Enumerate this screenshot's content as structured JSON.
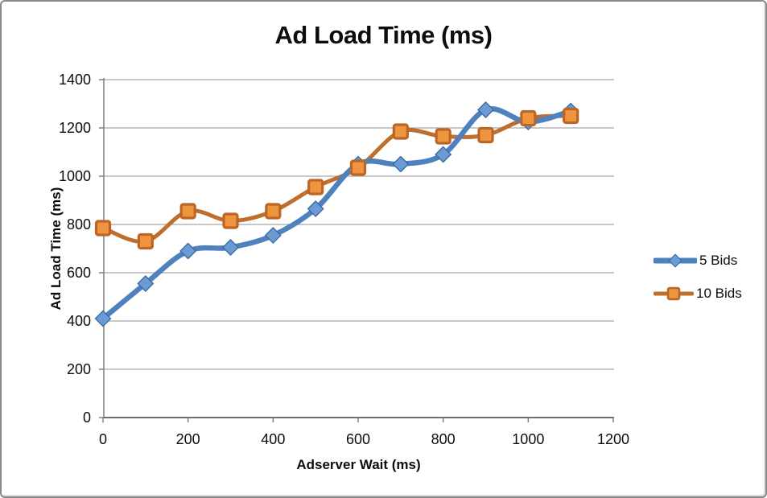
{
  "window": {
    "background": "#ffffff",
    "border_color": "#888888"
  },
  "chart_data": {
    "type": "line",
    "title": "Ad Load Time (ms)",
    "xlabel": "Adserver Wait (ms)",
    "ylabel": "Ad Load Time (ms)",
    "x": [
      0,
      100,
      200,
      300,
      400,
      500,
      600,
      700,
      800,
      900,
      1000,
      1100
    ],
    "series": [
      {
        "name": "5 Bids",
        "marker": "diamond",
        "line_color": "#4E81BD",
        "marker_fill": "#6C9BD3",
        "marker_stroke": "#3C6CA6",
        "line_width": 6.5,
        "values": [
          410,
          555,
          690,
          705,
          755,
          865,
          1050,
          1050,
          1090,
          1275,
          1225,
          1270
        ]
      },
      {
        "name": "10 Bids",
        "marker": "square",
        "line_color": "#BE6F2E",
        "marker_fill": "#F0953F",
        "marker_stroke": "#BB6527",
        "line_width": 5,
        "values": [
          785,
          730,
          855,
          815,
          855,
          955,
          1035,
          1185,
          1165,
          1170,
          1240,
          1250
        ]
      }
    ],
    "xlim": [
      0,
      1200
    ],
    "ylim": [
      0,
      1400
    ],
    "x_ticks": [
      0,
      200,
      400,
      600,
      800,
      1000,
      1200
    ],
    "y_ticks": [
      0,
      200,
      400,
      600,
      800,
      1000,
      1200,
      1400
    ],
    "grid": true,
    "smooth": true,
    "legend_position": "right",
    "gridline_color": "#A6A6A6",
    "axis_color": "#7F7F7F",
    "bottom_axis_color": "#6E6E6E",
    "tick_label_color": "#0d0d0d"
  }
}
